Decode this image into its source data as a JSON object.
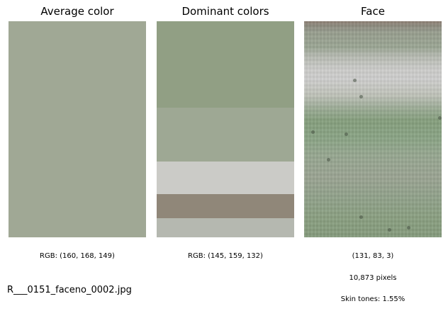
{
  "panels": {
    "average": {
      "title": "Average color",
      "color": "#a0a895",
      "caption": "RGB: (160, 168, 149)"
    },
    "dominant": {
      "title": "Dominant colors",
      "caption": "RGB: (145, 159, 132)",
      "bands": [
        {
          "color": "#919f84",
          "share": 0.4
        },
        {
          "color": "#9ea894",
          "share": 0.25
        },
        {
          "color": "#cbcbc7",
          "share": 0.15
        },
        {
          "color": "#908779",
          "share": 0.11
        },
        {
          "color": "#b5b8b0",
          "share": 0.09
        }
      ]
    },
    "face": {
      "title": "Face",
      "color_tuple": "(131, 83, 3)",
      "pixels": "10,873 pixels",
      "skin_tones": "Skin tones: 1.55%"
    }
  },
  "filename": "R___0151_faceno_0002.jpg"
}
